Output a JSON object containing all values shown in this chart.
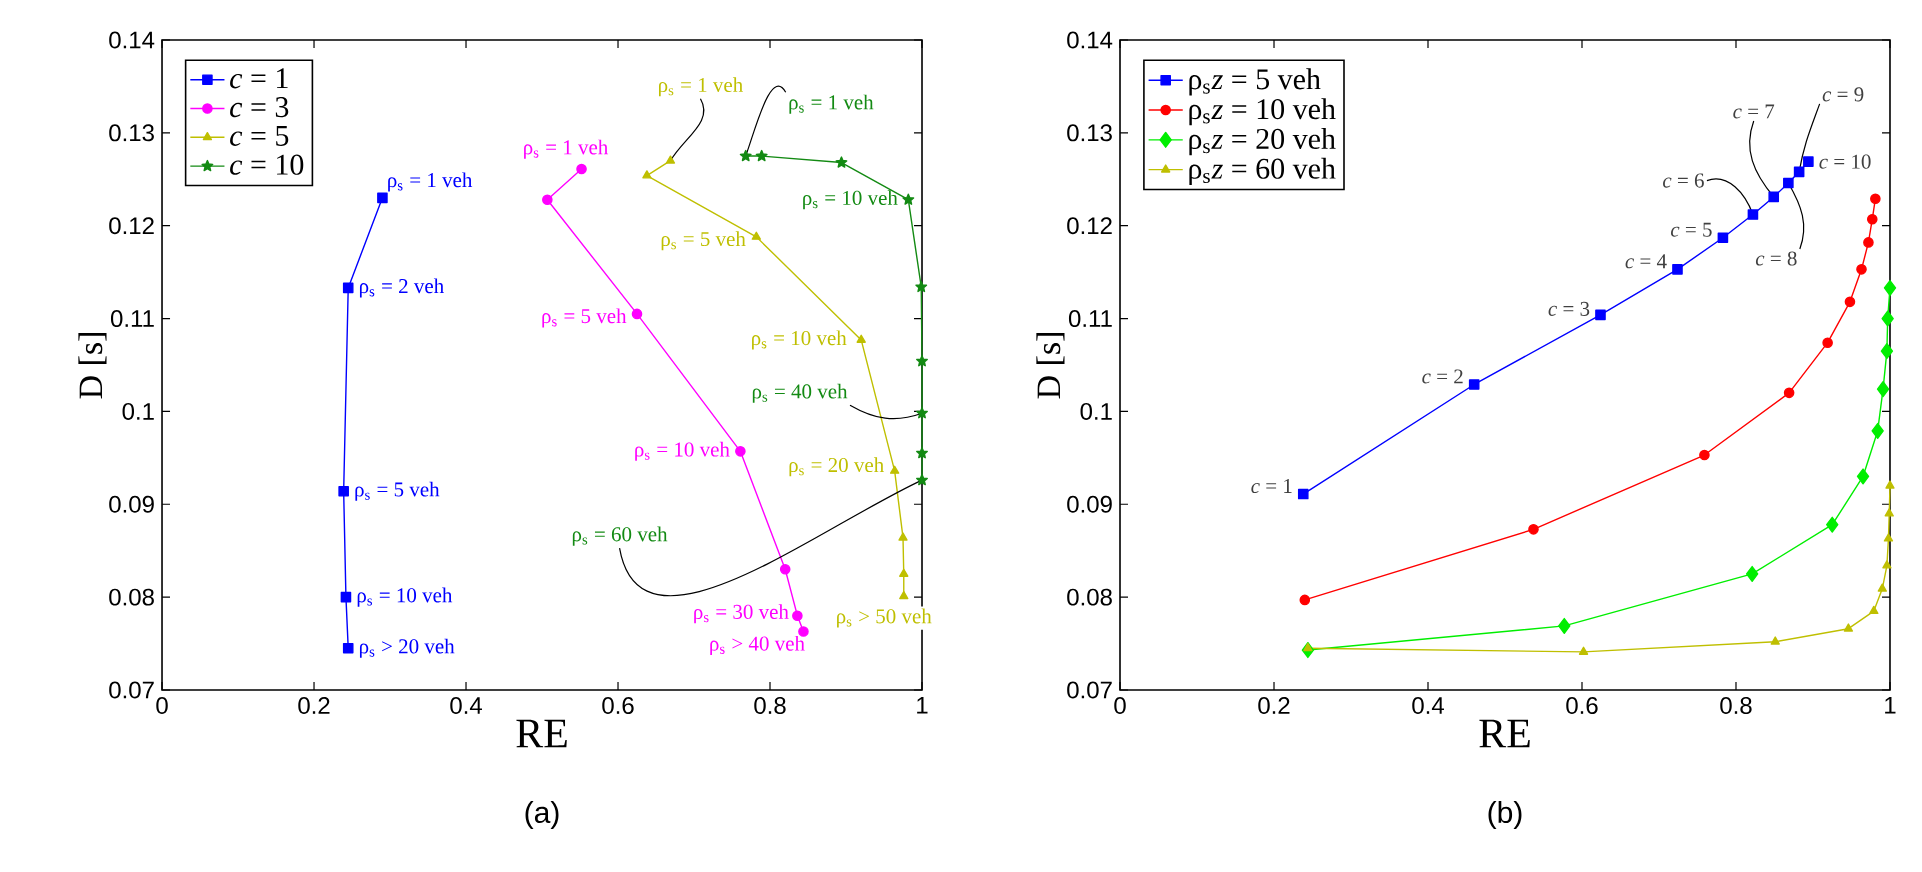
{
  "chart_data": [
    {
      "type": "line",
      "xlabel": "RE",
      "ylabel": "D [s]",
      "xlim": [
        0,
        1
      ],
      "ylim": [
        0.07,
        0.14
      ],
      "xticks": [
        0,
        0.2,
        0.4,
        0.6,
        0.8,
        1
      ],
      "yticks": [
        0.07,
        0.08,
        0.09,
        0.1,
        0.11,
        0.12,
        0.13,
        0.14
      ],
      "legend": "top left",
      "grid": false,
      "series": [
        {
          "name": "*c* = 1",
          "color": "#0000ff",
          "marker": "square",
          "x": [
            0.29,
            0.245,
            0.239,
            0.242,
            0.245
          ],
          "values": [
            0.123,
            0.1133,
            0.0914,
            0.08,
            0.0745
          ]
        },
        {
          "name": "*c* = 3",
          "color": "#ff00ff",
          "marker": "circle",
          "x": [
            0.552,
            0.507,
            0.625,
            0.761,
            0.82,
            0.836,
            0.844
          ],
          "values": [
            0.1261,
            0.1228,
            0.1105,
            0.0957,
            0.083,
            0.078,
            0.0763
          ]
        },
        {
          "name": "*c* = 5",
          "color": "#bfbf00",
          "marker": "triangle",
          "x": [
            0.669,
            0.638,
            0.782,
            0.92,
            0.964,
            0.975,
            0.976,
            0.976
          ],
          "values": [
            0.127,
            0.1254,
            0.1188,
            0.1077,
            0.0936,
            0.0864,
            0.0825,
            0.0801
          ]
        },
        {
          "name": "*c* = 10",
          "color": "#138a13",
          "marker": "star",
          "x": [
            0.768,
            0.789,
            0.894,
            0.982,
            0.999,
            1.0,
            1.0,
            1.0,
            1.0
          ],
          "values": [
            0.1275,
            0.1275,
            0.1268,
            0.1228,
            0.1134,
            0.1054,
            0.0998,
            0.0955,
            0.0926
          ]
        }
      ],
      "annotations": [
        {
          "text": "ρ$_{s}$ = 1 veh",
          "x": 0.29,
          "y": 0.123
        },
        {
          "text": "ρ$_{s}$ = 2 veh",
          "x": 0.245,
          "y": 0.1133
        },
        {
          "text": "ρ$_{s}$ = 5 veh",
          "x": 0.239,
          "y": 0.0914
        },
        {
          "text": "ρ$_{s}$ = 10 veh",
          "x": 0.242,
          "y": 0.08
        },
        {
          "text": "ρ$_{s}$ > 20 veh",
          "x": 0.245,
          "y": 0.0745
        },
        {
          "text": "ρ$_{s}$ = 1 veh",
          "x": 0.552,
          "y": 0.1261
        },
        {
          "text": "ρ$_{s}$ = 5 veh",
          "x": 0.625,
          "y": 0.1105
        },
        {
          "text": "ρ$_{s}$ = 10 veh",
          "x": 0.761,
          "y": 0.0957
        },
        {
          "text": "ρ$_{s}$ = 30 veh",
          "x": 0.836,
          "y": 0.078
        },
        {
          "text": "ρ$_{s}$ > 40 veh",
          "x": 0.844,
          "y": 0.0763
        },
        {
          "text": "ρ$_{s}$ = 1 veh",
          "x": 0.669,
          "y": 0.127
        },
        {
          "text": "ρ$_{s}$ = 5 veh",
          "x": 0.782,
          "y": 0.1188
        },
        {
          "text": "ρ$_{s}$ = 10 veh",
          "x": 0.92,
          "y": 0.1077
        },
        {
          "text": "ρ$_{s}$ = 20 veh",
          "x": 0.964,
          "y": 0.0936
        },
        {
          "text": "ρ$_{s}$ > 50 veh",
          "x": 0.976,
          "y": 0.0801
        },
        {
          "text": "ρ$_{s}$ = 1 veh",
          "x": 0.768,
          "y": 0.1275
        },
        {
          "text": "ρ$_{s}$ = 10 veh",
          "x": 0.982,
          "y": 0.1228
        },
        {
          "text": "ρ$_{s}$ = 40 veh",
          "x": 1.0,
          "y": 0.0998
        },
        {
          "text": "ρ$_{s}$ = 60 veh",
          "x": 1.0,
          "y": 0.0926
        },
        "(a)"
      ]
    },
    {
      "type": "line",
      "xlabel": "RE",
      "ylabel": "D [s]",
      "xlim": [
        0,
        1
      ],
      "ylim": [
        0.07,
        0.14
      ],
      "xticks": [
        0,
        0.2,
        0.4,
        0.6,
        0.8,
        1
      ],
      "yticks": [
        0.07,
        0.08,
        0.09,
        0.1,
        0.11,
        0.12,
        0.13,
        0.14
      ],
      "legend": "top left",
      "grid": false,
      "series": [
        {
          "name": "ρ$_{s}$*z* = 5 veh",
          "color": "#0000ff",
          "marker": "square",
          "x": [
            0.238,
            0.46,
            0.624,
            0.724,
            0.783,
            0.822,
            0.849,
            0.868,
            0.882,
            0.894
          ],
          "values": [
            0.0911,
            0.1029,
            0.1104,
            0.1153,
            0.1187,
            0.1212,
            0.1231,
            0.1246,
            0.1258,
            0.1269
          ]
        },
        {
          "name": "ρ$_{s}$*z* = 10 veh",
          "color": "#ff0000",
          "marker": "circle",
          "x": [
            0.24,
            0.537,
            0.759,
            0.869,
            0.919,
            0.948,
            0.963,
            0.972,
            0.977,
            0.981
          ],
          "values": [
            0.0797,
            0.0873,
            0.0953,
            0.102,
            0.1074,
            0.1118,
            0.1153,
            0.1182,
            0.1207,
            0.1229
          ]
        },
        {
          "name": "ρ$_{s}$*z* = 20 veh",
          "color": "#00ee00",
          "marker": "diamond",
          "x": [
            0.244,
            0.577,
            0.821,
            0.925,
            0.965,
            0.984,
            0.991,
            0.996,
            0.997,
            1.0
          ],
          "values": [
            0.0743,
            0.0769,
            0.0825,
            0.0878,
            0.093,
            0.0979,
            0.1024,
            0.1065,
            0.11,
            0.1133
          ]
        },
        {
          "name": "ρ$_{s}$*z* = 60 veh",
          "color": "#bfbf00",
          "marker": "triangle",
          "x": [
            0.244,
            0.602,
            0.851,
            0.946,
            0.979,
            0.99,
            0.996,
            0.998,
            0.999,
            1.0
          ],
          "values": [
            0.0745,
            0.0741,
            0.0752,
            0.0766,
            0.0785,
            0.0809,
            0.0834,
            0.0863,
            0.089,
            0.092
          ]
        }
      ],
      "annotations": [
        {
          "text": "*c* = 1",
          "x": 0.238,
          "y": 0.0911
        },
        {
          "text": "*c* = 2",
          "x": 0.46,
          "y": 0.1029
        },
        {
          "text": "*c* = 3",
          "x": 0.624,
          "y": 0.1104
        },
        {
          "text": "*c* = 4",
          "x": 0.724,
          "y": 0.1153
        },
        {
          "text": "*c* = 5",
          "x": 0.783,
          "y": 0.1187
        },
        {
          "text": "*c* = 6",
          "x": 0.822,
          "y": 0.1212
        },
        {
          "text": "*c* = 7",
          "x": 0.849,
          "y": 0.1231
        },
        {
          "text": "*c* = 8",
          "x": 0.868,
          "y": 0.1246
        },
        {
          "text": "*c* = 9",
          "x": 0.882,
          "y": 0.1258
        },
        {
          "text": "*c* = 10",
          "x": 0.894,
          "y": 0.1269
        },
        "(b)"
      ]
    }
  ]
}
